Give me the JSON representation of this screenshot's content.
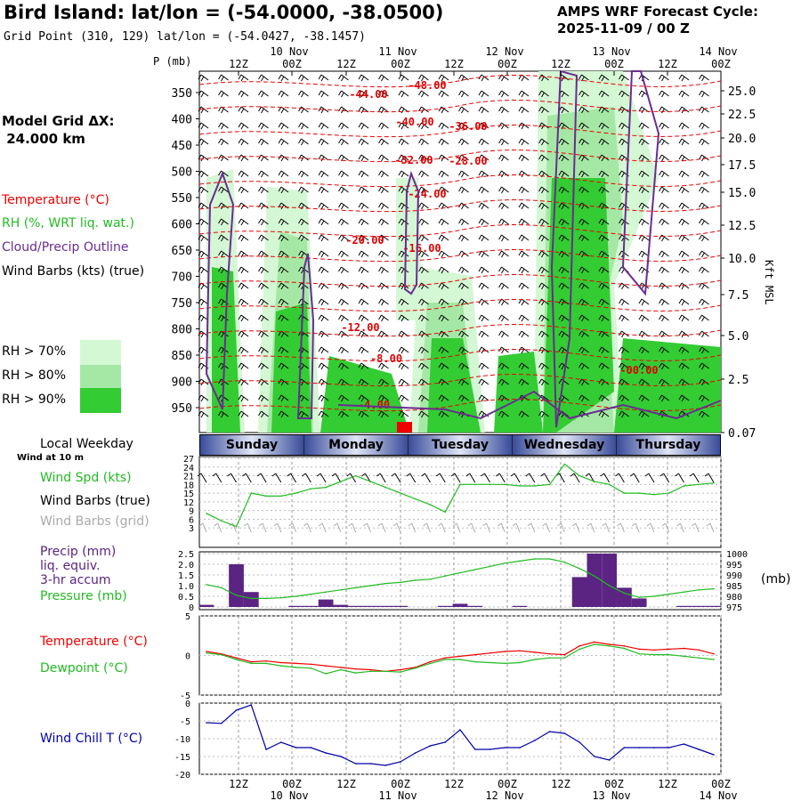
{
  "header": {
    "title": "Bird Island:  lat/lon = (-54.0000, -38.0500)",
    "grid_point": "Grid Point (310, 129) lat/lon = (-54.0427, -38.1457)",
    "cycle_line1": "AMPS WRF Forecast Cycle:",
    "cycle_line2": "2025-11-09 / 00  Z"
  },
  "left_labels": {
    "model_grid": "Model Grid ΔX:",
    "model_grid_value": " 24.000 km",
    "temperature": "Temperature (°C)",
    "rh": "RH (%, WRT liq. wat.)",
    "cloud": "Cloud/Precip Outline",
    "wind": "Wind Barbs (kts) (true)",
    "rh70": "RH > 70%",
    "rh80": "RH > 80%",
    "rh90": "RH > 90%",
    "p_axis": "P (mb)",
    "kft_axis": "Kft MSL",
    "local_weekday": "Local Weekday",
    "wind_at_10m": "Wind at 10 m",
    "wind_spd": "Wind Spd (kts)",
    "wind_barbs_true": "Wind Barbs (true)",
    "wind_barbs_grid": "Wind Barbs (grid)",
    "precip": "Precip (mm)",
    "liq_equiv": "liq. equiv.",
    "accum": "3-hr accum",
    "pressure": "Pressure (mb)",
    "mb_unit": "(mb)",
    "temp2": "Temperature (°C)",
    "dewpoint": "Dewpoint (°C)",
    "wind_chill": "Wind Chill T (°C)"
  },
  "colors": {
    "rh70": "#d4f7d4",
    "rh80": "#a5e8a5",
    "rh90": "#33cc33",
    "temperature": "#ee0000",
    "dewpoint": "#22bb22",
    "cloud": "#6a2c91",
    "precip": "#5b2483",
    "windchill": "#0000aa",
    "grid_barbs": "#aaaaaa"
  },
  "weekdays": [
    "Sunday",
    "Monday",
    "Tuesday",
    "Wednesday",
    "Thursday"
  ],
  "time_axis": {
    "top_ticks": [
      "12Z",
      "00Z",
      "12Z",
      "00Z",
      "12Z",
      "00Z",
      "12Z",
      "00Z",
      "12Z",
      "00Z"
    ],
    "date_labels": [
      {
        "text": "10 Nov",
        "tick": 1
      },
      {
        "text": "11 Nov",
        "tick": 3
      },
      {
        "text": "12 Nov",
        "tick": 5
      },
      {
        "text": "13 Nov",
        "tick": 7
      },
      {
        "text": "14 Nov",
        "tick": 9
      }
    ]
  },
  "chart_data": [
    {
      "type": "heatmap",
      "name": "cross-section",
      "y_axis_left": {
        "label": "P (mb)",
        "ticks": [
          350,
          400,
          450,
          500,
          550,
          600,
          650,
          700,
          750,
          800,
          850,
          900,
          950
        ]
      },
      "y_axis_right": {
        "label": "Kft MSL",
        "ticks": [
          "25.0",
          "22.5",
          "20.0",
          "17.5",
          "15.0",
          "12.5",
          "10.0",
          "7.5",
          "5.0",
          "2.5",
          "0.07"
        ]
      },
      "temperature_contour_labels": [
        "-48.00",
        "-44.00",
        "-40.00",
        "-36.00",
        "-32.00",
        "-28.00",
        "-24.00",
        "-20.00",
        "-16.00",
        "-12.00",
        "-8.00",
        "-4.00",
        "-00.00"
      ]
    },
    {
      "type": "line",
      "name": "wind",
      "yticks": [
        3,
        6,
        9,
        12,
        15,
        18,
        21,
        24,
        27
      ],
      "ylim": [
        0,
        27
      ],
      "series": [
        {
          "name": "Wind Spd (kts)",
          "values": [
            8,
            5.5,
            3.5,
            15,
            14,
            14,
            15,
            16.5,
            17,
            19,
            21,
            19,
            17,
            15,
            13,
            11,
            8.5,
            18,
            18,
            18,
            18,
            17.5,
            17.5,
            18,
            25,
            21,
            19,
            18,
            15,
            15,
            14.5,
            15,
            17.5,
            18,
            18.5
          ]
        }
      ]
    },
    {
      "type": "bar",
      "name": "precip-pressure",
      "y_left_ticks": [
        "2.5",
        "2.0",
        "1.5",
        "1.0",
        "0.5",
        "0"
      ],
      "y_right_ticks": [
        "1000",
        "995",
        "990",
        "985",
        "980",
        "975"
      ],
      "ylim_left": [
        0,
        2.5
      ],
      "ylim_right": [
        975,
        1000
      ],
      "series": [
        {
          "name": "Precip (mm)",
          "values": [
            0.1,
            0,
            2,
            0.7,
            0,
            0,
            0.05,
            0.05,
            0.35,
            0.1,
            0.05,
            0.05,
            0.05,
            0.05,
            0,
            0,
            0.05,
            0.15,
            0.05,
            0,
            0,
            0.05,
            0,
            0,
            0,
            1.4,
            2.5,
            2.5,
            0.9,
            0.4,
            0,
            0,
            0.05,
            0.05,
            0.05
          ]
        },
        {
          "name": "Pressure (mb)",
          "values": [
            985.5,
            984,
            980.5,
            979,
            979,
            979.3,
            980,
            981,
            982,
            983,
            984,
            985,
            986,
            986.5,
            987.5,
            988,
            989.5,
            991,
            992.5,
            994,
            995.5,
            996.5,
            997.5,
            997.5,
            996,
            993,
            989.5,
            985,
            981.5,
            979.5,
            980,
            981,
            982,
            983,
            983.5
          ]
        }
      ]
    },
    {
      "type": "line",
      "name": "temperature-dewpoint",
      "yticks": [
        "5",
        "0",
        "-5"
      ],
      "ylim": [
        -5,
        5
      ],
      "series": [
        {
          "name": "Temperature (°C)",
          "values": [
            0.5,
            0.2,
            -0.3,
            -0.8,
            -0.7,
            -0.9,
            -1,
            -1.1,
            -1.3,
            -1.5,
            -1.7,
            -1.8,
            -2,
            -1.8,
            -1.5,
            -0.8,
            -0.3,
            -0.1,
            0.1,
            0.3,
            0.5,
            0.6,
            0.4,
            0.2,
            0.1,
            1.2,
            1.7,
            1.4,
            1.2,
            0.8,
            0.7,
            0.8,
            0.9,
            0.7,
            0.2
          ]
        },
        {
          "name": "Dewpoint (°C)",
          "values": [
            0.3,
            0.1,
            -0.5,
            -1,
            -1,
            -1.3,
            -1.5,
            -1.6,
            -2.3,
            -1.8,
            -2.2,
            -2,
            -2,
            -2.1,
            -1.6,
            -1,
            -0.5,
            -0.5,
            -0.8,
            -0.9,
            -1,
            -0.9,
            -0.5,
            -0.3,
            -0.3,
            0.8,
            1.4,
            1.2,
            0.9,
            0.2,
            0.1,
            0.1,
            -0.1,
            -0.3,
            -0.5
          ]
        }
      ]
    },
    {
      "type": "line",
      "name": "wind-chill",
      "yticks": [
        "0",
        "-5",
        "-10",
        "-15",
        "-20"
      ],
      "ylim": [
        -20,
        0
      ],
      "series": [
        {
          "name": "Wind Chill T (°C)",
          "values": [
            -5.5,
            -5.7,
            -2,
            -0.5,
            -13,
            -11,
            -12.5,
            -12.5,
            -14,
            -15,
            -17,
            -17,
            -17.5,
            -16.5,
            -14,
            -12,
            -11,
            -7.5,
            -13,
            -13,
            -12.5,
            -12.5,
            -10.5,
            -8,
            -8.5,
            -11,
            -15,
            -16,
            -12.5,
            -12.5,
            -12.5,
            -12.5,
            -11.5,
            -13,
            -14.5
          ]
        }
      ]
    }
  ]
}
